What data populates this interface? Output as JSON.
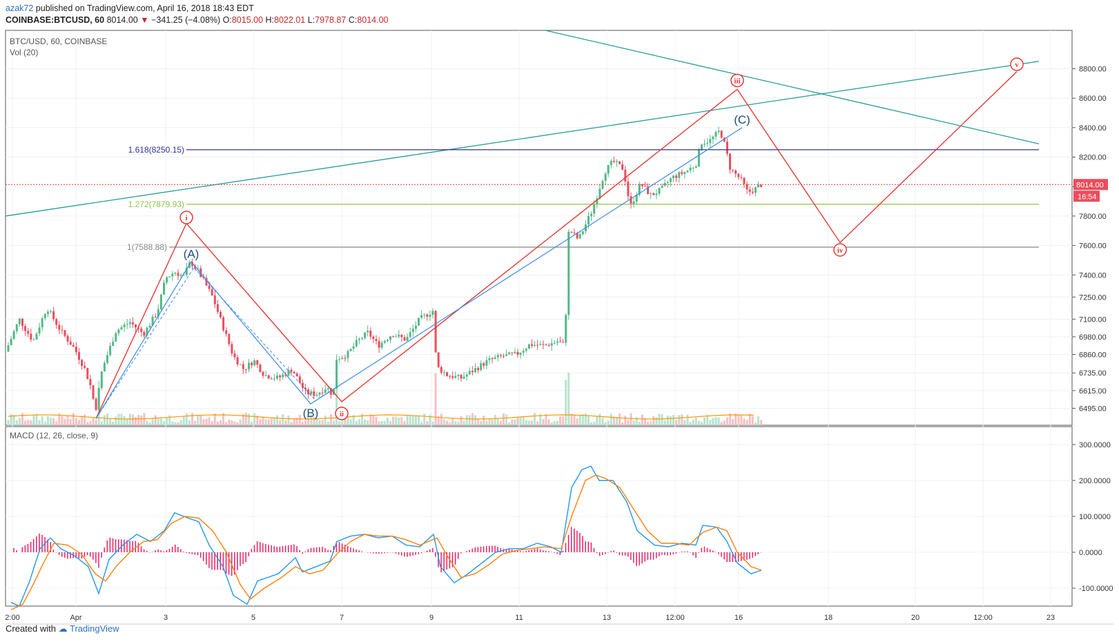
{
  "header": {
    "user": "azak72",
    "published": "published on TradingView.com, April 16, 2018 18:43 EDT",
    "symbol": "COINBASE:BTCUSD, 60",
    "last": "8014.00",
    "change": "−341.25 (−4.08%)",
    "open_label": "O:",
    "open": "8015.00",
    "high_label": "H:",
    "high": "8022.01",
    "low_label": "L:",
    "low": "7978.87",
    "close_label": "C:",
    "close": "8014.00"
  },
  "main_pane": {
    "title": "BTC/USD, 60, COINBASE",
    "volume_label": "Vol (20)"
  },
  "macd_pane": {
    "title": "MACD (12, 26, close, 9)"
  },
  "footer": {
    "created_with": "Created with",
    "brand": "TradingView"
  },
  "colors": {
    "up": "#53b987",
    "down": "#eb4d5c",
    "wave": "#e53935",
    "abc": "#3c8ae8",
    "trend": "#2a9d8f",
    "fib1618": "#2e3192",
    "fib1272": "#8bc34a",
    "fib1": "#888888",
    "macd": "#2196f3",
    "signal": "#ff7f0e",
    "hist": "#e91e63",
    "grid": "#eef0f3"
  },
  "chart_data": [
    {
      "type": "candlestick",
      "title": "BTC/USD, 60, COINBASE",
      "price_axis": {
        "ylim": [
          6380,
          9060
        ],
        "ticks": [
          6495,
          6615,
          6735,
          6860,
          6980,
          7100,
          7250,
          7400,
          7600,
          7800,
          8000,
          8200,
          8400,
          8600,
          8800
        ]
      },
      "time_axis": {
        "ticks": [
          "2:00",
          "Apr",
          "3",
          "5",
          "7",
          "9",
          "11",
          "13",
          "12:00",
          "16",
          "18",
          "20",
          "12:00",
          "23"
        ]
      },
      "last_price": "8014.00",
      "countdown": "16:54",
      "fib_levels": [
        {
          "label": "1.618(8250.15)",
          "value": 8250.15
        },
        {
          "label": "1.272(7879.93)",
          "value": 7879.93
        },
        {
          "label": "1(7588.88)",
          "value": 7588.88
        }
      ],
      "wave_labels": [
        {
          "label": "i",
          "value": 7750
        },
        {
          "label": "ii",
          "value": 6540
        },
        {
          "label": "iii",
          "value": 8660
        },
        {
          "label": "iv",
          "value": 7620
        },
        {
          "label": "v",
          "value": 8780
        }
      ],
      "abc_labels": [
        {
          "label": "(A)",
          "value": 7490
        },
        {
          "label": "(B)",
          "value": 6525
        },
        {
          "label": "(C)",
          "value": 8410
        }
      ],
      "price_path": [
        [
          0,
          6880
        ],
        [
          20,
          7100
        ],
        [
          40,
          6950
        ],
        [
          60,
          7180
        ],
        [
          80,
          7020
        ],
        [
          100,
          6900
        ],
        [
          115,
          6760
        ],
        [
          125,
          6620
        ],
        [
          130,
          6470
        ],
        [
          140,
          6760
        ],
        [
          160,
          7020
        ],
        [
          180,
          7080
        ],
        [
          200,
          7000
        ],
        [
          220,
          7150
        ],
        [
          232,
          7380
        ],
        [
          245,
          7420
        ],
        [
          258,
          7390
        ],
        [
          268,
          7490
        ],
        [
          280,
          7420
        ],
        [
          300,
          7250
        ],
        [
          315,
          7050
        ],
        [
          330,
          6850
        ],
        [
          345,
          6760
        ],
        [
          360,
          6820
        ],
        [
          375,
          6720
        ],
        [
          395,
          6700
        ],
        [
          415,
          6760
        ],
        [
          425,
          6680
        ],
        [
          435,
          6600
        ],
        [
          450,
          6590
        ],
        [
          465,
          6640
        ],
        [
          475,
          6580
        ],
        [
          478,
          6830
        ],
        [
          495,
          6860
        ],
        [
          510,
          6950
        ],
        [
          525,
          7010
        ],
        [
          540,
          6920
        ],
        [
          560,
          7000
        ],
        [
          580,
          6960
        ],
        [
          600,
          7100
        ],
        [
          620,
          7160
        ],
        [
          624,
          6780
        ],
        [
          640,
          6720
        ],
        [
          660,
          6700
        ],
        [
          680,
          6760
        ],
        [
          700,
          6820
        ],
        [
          720,
          6850
        ],
        [
          740,
          6860
        ],
        [
          760,
          6930
        ],
        [
          780,
          6920
        ],
        [
          800,
          6950
        ],
        [
          810,
          6920
        ],
        [
          816,
          7710
        ],
        [
          830,
          7640
        ],
        [
          850,
          7840
        ],
        [
          868,
          8100
        ],
        [
          880,
          8170
        ],
        [
          895,
          8120
        ],
        [
          905,
          7860
        ],
        [
          920,
          8020
        ],
        [
          935,
          7940
        ],
        [
          950,
          7980
        ],
        [
          965,
          8060
        ],
        [
          985,
          8100
        ],
        [
          1000,
          8150
        ],
        [
          1008,
          8300
        ],
        [
          1020,
          8310
        ],
        [
          1035,
          8380
        ],
        [
          1042,
          8280
        ],
        [
          1050,
          8120
        ],
        [
          1065,
          8050
        ],
        [
          1075,
          7960
        ],
        [
          1085,
          7980
        ],
        [
          1095,
          8014
        ]
      ]
    },
    {
      "type": "line",
      "title": "MACD (12, 26, close, 9)",
      "ylim": [
        -150,
        350
      ],
      "ticks": [
        "300.0000",
        "200.0000",
        "100.0000",
        "0.0000",
        "-100.0000"
      ],
      "tick_values": [
        300,
        200,
        100,
        0,
        -100
      ],
      "series": [
        {
          "name": "MACD",
          "points": [
            [
              8,
              -140
            ],
            [
              20,
              -150
            ],
            [
              35,
              -80
            ],
            [
              50,
              10
            ],
            [
              65,
              40
            ],
            [
              80,
              10
            ],
            [
              100,
              -10
            ],
            [
              120,
              -40
            ],
            [
              135,
              -115
            ],
            [
              150,
              -20
            ],
            [
              170,
              20
            ],
            [
              190,
              50
            ],
            [
              210,
              30
            ],
            [
              230,
              60
            ],
            [
              245,
              110
            ],
            [
              265,
              95
            ],
            [
              280,
              85
            ],
            [
              295,
              20
            ],
            [
              315,
              -40
            ],
            [
              330,
              -120
            ],
            [
              350,
              -145
            ],
            [
              365,
              -80
            ],
            [
              380,
              -70
            ],
            [
              395,
              -60
            ],
            [
              420,
              -15
            ],
            [
              430,
              -55
            ],
            [
              450,
              -40
            ],
            [
              470,
              -25
            ],
            [
              480,
              30
            ],
            [
              500,
              45
            ],
            [
              520,
              50
            ],
            [
              540,
              40
            ],
            [
              560,
              45
            ],
            [
              580,
              20
            ],
            [
              600,
              15
            ],
            [
              620,
              50
            ],
            [
              630,
              -40
            ],
            [
              650,
              -85
            ],
            [
              670,
              -60
            ],
            [
              690,
              -30
            ],
            [
              710,
              0
            ],
            [
              730,
              10
            ],
            [
              750,
              10
            ],
            [
              770,
              25
            ],
            [
              790,
              15
            ],
            [
              805,
              0
            ],
            [
              820,
              180
            ],
            [
              835,
              230
            ],
            [
              848,
              240
            ],
            [
              860,
              200
            ],
            [
              880,
              200
            ],
            [
              900,
              140
            ],
            [
              915,
              60
            ],
            [
              940,
              20
            ],
            [
              960,
              15
            ],
            [
              980,
              25
            ],
            [
              1000,
              20
            ],
            [
              1010,
              75
            ],
            [
              1030,
              70
            ],
            [
              1045,
              30
            ],
            [
              1060,
              -30
            ],
            [
              1080,
              -60
            ],
            [
              1095,
              -50
            ]
          ]
        },
        {
          "name": "Signal",
          "points": [
            [
              8,
              -160
            ],
            [
              25,
              -145
            ],
            [
              40,
              -90
            ],
            [
              55,
              -30
            ],
            [
              70,
              25
            ],
            [
              90,
              20
            ],
            [
              110,
              -5
            ],
            [
              130,
              -60
            ],
            [
              145,
              -80
            ],
            [
              160,
              -40
            ],
            [
              180,
              0
            ],
            [
              200,
              30
            ],
            [
              220,
              35
            ],
            [
              240,
              80
            ],
            [
              260,
              100
            ],
            [
              280,
              95
            ],
            [
              300,
              60
            ],
            [
              320,
              0
            ],
            [
              340,
              -90
            ],
            [
              355,
              -130
            ],
            [
              375,
              -100
            ],
            [
              400,
              -70
            ],
            [
              420,
              -40
            ],
            [
              440,
              -60
            ],
            [
              460,
              -50
            ],
            [
              480,
              -5
            ],
            [
              500,
              30
            ],
            [
              520,
              50
            ],
            [
              540,
              45
            ],
            [
              560,
              45
            ],
            [
              580,
              35
            ],
            [
              600,
              20
            ],
            [
              625,
              40
            ],
            [
              640,
              -10
            ],
            [
              660,
              -70
            ],
            [
              680,
              -60
            ],
            [
              700,
              -35
            ],
            [
              720,
              -5
            ],
            [
              740,
              5
            ],
            [
              760,
              10
            ],
            [
              780,
              15
            ],
            [
              805,
              10
            ],
            [
              820,
              100
            ],
            [
              840,
              200
            ],
            [
              855,
              215
            ],
            [
              870,
              205
            ],
            [
              890,
              180
            ],
            [
              910,
              120
            ],
            [
              930,
              60
            ],
            [
              950,
              25
            ],
            [
              970,
              25
            ],
            [
              990,
              20
            ],
            [
              1010,
              55
            ],
            [
              1030,
              70
            ],
            [
              1045,
              60
            ],
            [
              1060,
              0
            ],
            [
              1080,
              -40
            ],
            [
              1095,
              -50
            ]
          ]
        }
      ]
    }
  ]
}
